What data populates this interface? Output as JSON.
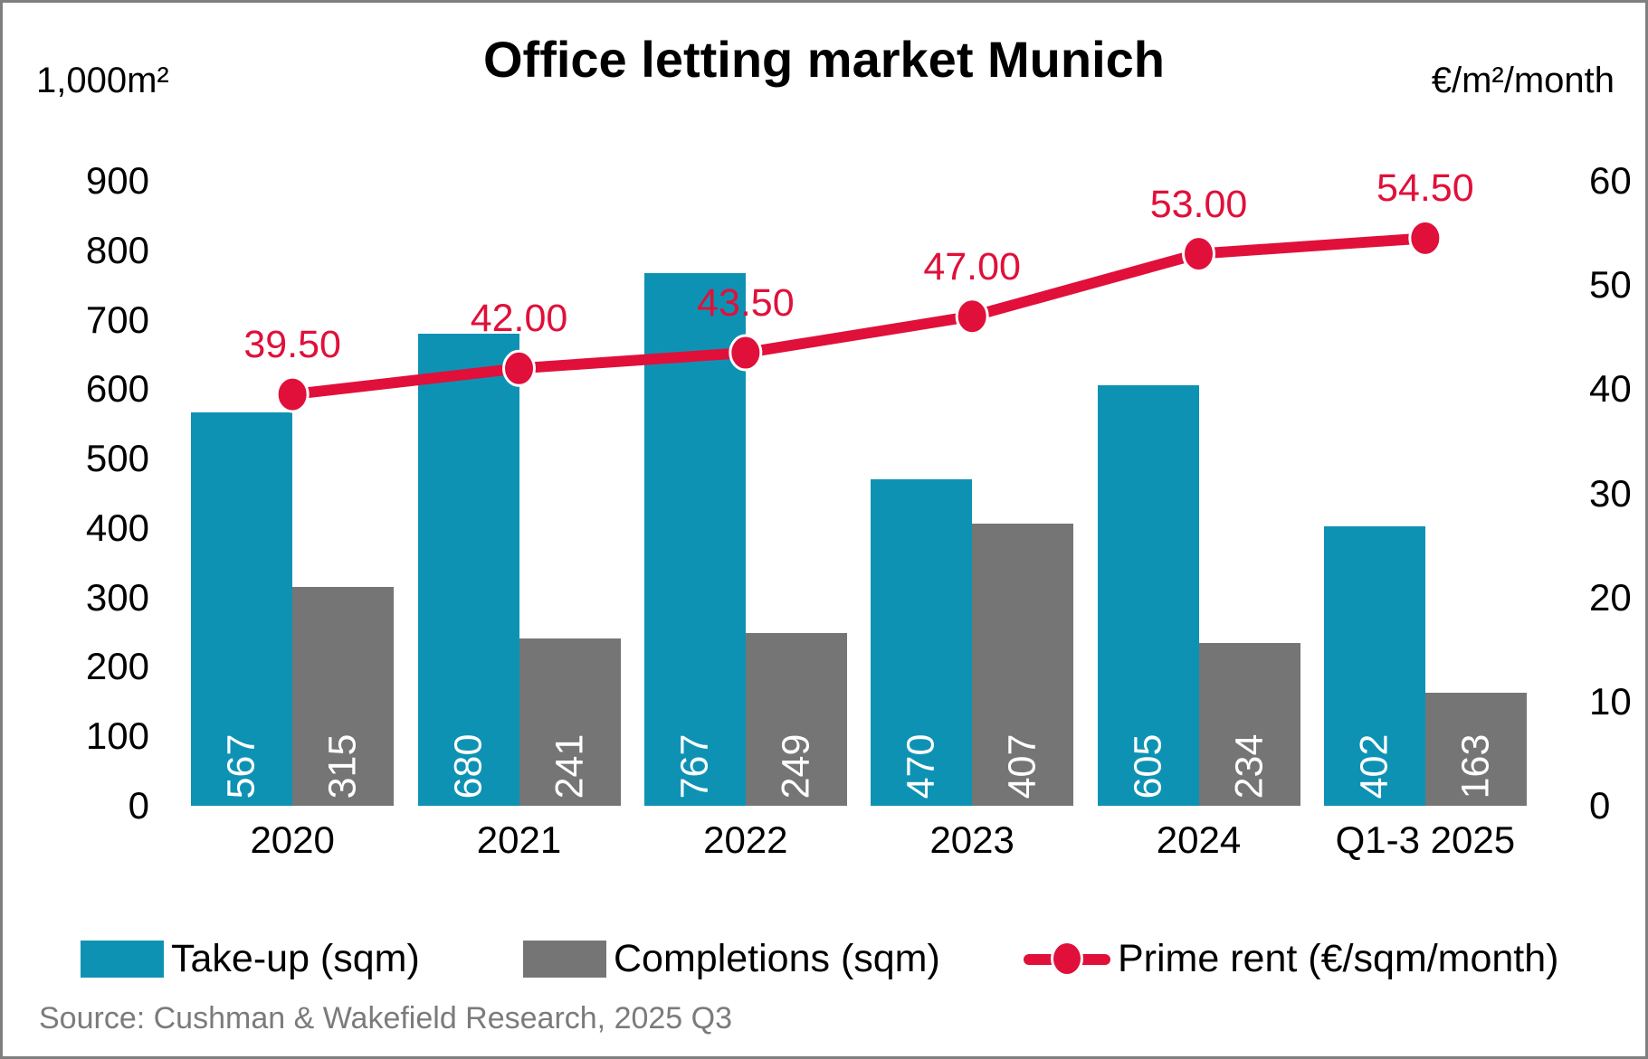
{
  "title": "Office letting market Munich",
  "left_axis_unit": "1,000m²",
  "right_axis_unit": "€/m²/month",
  "source": "Source: Cushman & Wakefield Research, 2025 Q3",
  "colors": {
    "takeup": "#0e92b4",
    "completions": "#757575",
    "prime_rent": "#e0103a",
    "bar_label_text": "#ffffff",
    "source_text": "#7b7b7b"
  },
  "legend": {
    "takeup": "Take-up (sqm)",
    "completions": "Completions (sqm)",
    "prime_rent": "Prime rent (€/sqm/month)"
  },
  "chart_data": {
    "type": "bar+line",
    "title": "Office letting market Munich",
    "categories": [
      "2020",
      "2021",
      "2022",
      "2023",
      "2024",
      "Q1-3 2025"
    ],
    "series": [
      {
        "name": "Take-up (sqm)",
        "color": "#0e92b4",
        "values": [
          567,
          680,
          767,
          470,
          605,
          402
        ]
      },
      {
        "name": "Completions (sqm)",
        "color": "#757575",
        "values": [
          315,
          241,
          249,
          407,
          234,
          163
        ]
      }
    ],
    "line_series": {
      "name": "Prime rent (€/sqm/month)",
      "color": "#e0103a",
      "values": [
        39.5,
        42.0,
        43.5,
        47.0,
        53.0,
        54.5
      ],
      "labels": [
        "39.50",
        "42.00",
        "43.50",
        "47.00",
        "53.00",
        "54.50"
      ]
    },
    "left_axis": {
      "unit": "1,000m²",
      "min": 0,
      "max": 900,
      "ticks": [
        900,
        800,
        700,
        600,
        500,
        400,
        300,
        200,
        100,
        0
      ]
    },
    "right_axis": {
      "unit": "€/m²/month",
      "min": 0,
      "max": 60,
      "ticks": [
        60,
        50,
        40,
        30,
        20,
        10,
        0
      ]
    },
    "grid": false,
    "legend_position": "bottom"
  }
}
